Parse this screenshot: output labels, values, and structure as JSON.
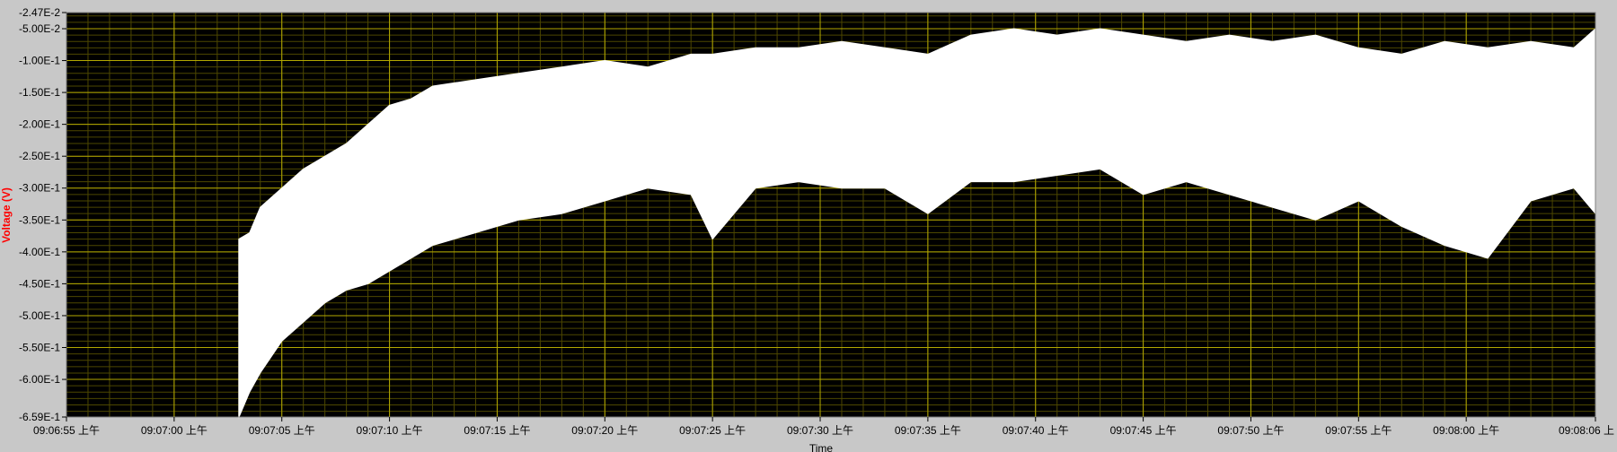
{
  "chart_data": {
    "type": "area",
    "xlabel": "Time",
    "ylabel": "Voltage (V)",
    "xlim": [
      "09:06:55",
      "09:08:06"
    ],
    "ylim": [
      -0.659,
      -0.0247
    ],
    "grid": true,
    "colors": {
      "plot_bg": "#000000",
      "grid_major": "#b3a800",
      "grid_minor": "#4d4700",
      "signal": "#ffffff",
      "ylabel": "#ff0000",
      "frame": "#c8c8c8"
    },
    "y_ticks": [
      {
        "v": -0.0247,
        "label": "-2.47E-2"
      },
      {
        "v": -0.05,
        "label": "-5.00E-2"
      },
      {
        "v": -0.1,
        "label": "-1.00E-1"
      },
      {
        "v": -0.15,
        "label": "-1.50E-1"
      },
      {
        "v": -0.2,
        "label": "-2.00E-1"
      },
      {
        "v": -0.25,
        "label": "-2.50E-1"
      },
      {
        "v": -0.3,
        "label": "-3.00E-1"
      },
      {
        "v": -0.35,
        "label": "-3.50E-1"
      },
      {
        "v": -0.4,
        "label": "-4.00E-1"
      },
      {
        "v": -0.45,
        "label": "-4.50E-1"
      },
      {
        "v": -0.5,
        "label": "-5.00E-1"
      },
      {
        "v": -0.55,
        "label": "-5.50E-1"
      },
      {
        "v": -0.6,
        "label": "-6.00E-1"
      },
      {
        "v": -0.659,
        "label": "-6.59E-1"
      }
    ],
    "x_ticks": [
      {
        "t": "09:06:55",
        "label": "09:06:55 上午"
      },
      {
        "t": "09:07:00",
        "label": "09:07:00 上午"
      },
      {
        "t": "09:07:05",
        "label": "09:07:05 上午"
      },
      {
        "t": "09:07:10",
        "label": "09:07:10 上午"
      },
      {
        "t": "09:07:15",
        "label": "09:07:15 上午"
      },
      {
        "t": "09:07:20",
        "label": "09:07:20 上午"
      },
      {
        "t": "09:07:25",
        "label": "09:07:25 上午"
      },
      {
        "t": "09:07:30",
        "label": "09:07:30 上午"
      },
      {
        "t": "09:07:35",
        "label": "09:07:35 上午"
      },
      {
        "t": "09:07:40",
        "label": "09:07:40 上午"
      },
      {
        "t": "09:07:45",
        "label": "09:07:45 上午"
      },
      {
        "t": "09:07:50",
        "label": "09:07:50 上午"
      },
      {
        "t": "09:07:55",
        "label": "09:07:55 上午"
      },
      {
        "t": "09:08:00",
        "label": "09:08:00 上午"
      },
      {
        "t": "09:08:06",
        "label": "09:08:06 上"
      }
    ],
    "series": [
      {
        "time": [
          "09:07:03",
          "09:07:03.5",
          "09:07:04",
          "09:07:05",
          "09:07:06",
          "09:07:07",
          "09:07:08",
          "09:07:09",
          "09:07:10",
          "09:07:11",
          "09:07:12",
          "09:07:14",
          "09:07:16",
          "09:07:18",
          "09:07:20",
          "09:07:22",
          "09:07:24",
          "09:07:25",
          "09:07:27",
          "09:07:29",
          "09:07:31",
          "09:07:33",
          "09:07:35",
          "09:07:37",
          "09:07:39",
          "09:07:41",
          "09:07:43",
          "09:07:45",
          "09:07:47",
          "09:07:49",
          "09:07:51",
          "09:07:53",
          "09:07:55",
          "09:07:57",
          "09:07:59",
          "09:08:01",
          "09:08:03",
          "09:08:05",
          "09:08:06"
        ],
        "upper": [
          -0.38,
          -0.37,
          -0.33,
          -0.3,
          -0.27,
          -0.25,
          -0.23,
          -0.2,
          -0.17,
          -0.16,
          -0.14,
          -0.13,
          -0.12,
          -0.11,
          -0.1,
          -0.11,
          -0.09,
          -0.09,
          -0.08,
          -0.08,
          -0.07,
          -0.08,
          -0.09,
          -0.06,
          -0.05,
          -0.06,
          -0.05,
          -0.06,
          -0.07,
          -0.06,
          -0.07,
          -0.06,
          -0.08,
          -0.09,
          -0.07,
          -0.08,
          -0.07,
          -0.08,
          -0.05
        ],
        "lower": [
          -0.66,
          -0.62,
          -0.59,
          -0.54,
          -0.51,
          -0.48,
          -0.46,
          -0.45,
          -0.43,
          -0.41,
          -0.39,
          -0.37,
          -0.35,
          -0.34,
          -0.32,
          -0.3,
          -0.31,
          -0.38,
          -0.3,
          -0.29,
          -0.3,
          -0.3,
          -0.34,
          -0.29,
          -0.29,
          -0.28,
          -0.27,
          -0.31,
          -0.29,
          -0.31,
          -0.33,
          -0.35,
          -0.32,
          -0.36,
          -0.39,
          -0.41,
          -0.32,
          -0.3,
          -0.34
        ]
      }
    ]
  }
}
